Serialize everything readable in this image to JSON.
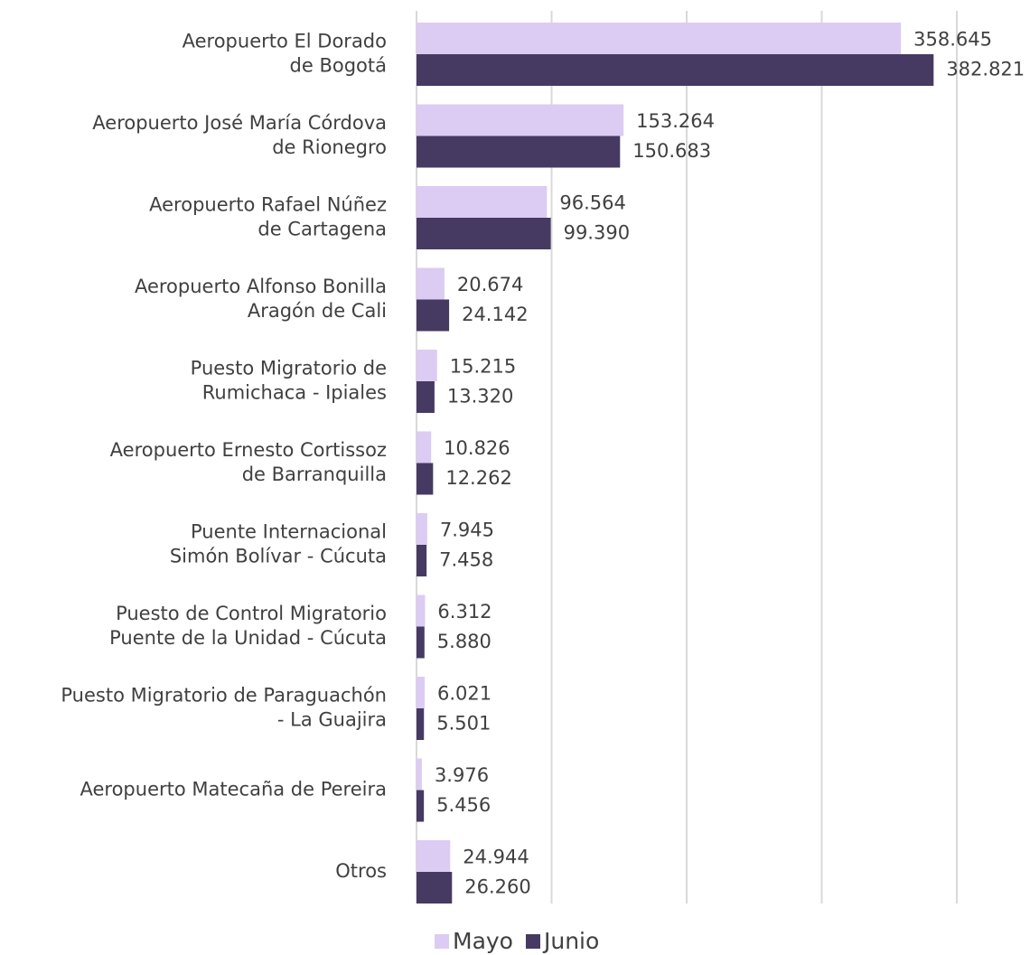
{
  "chart_data": {
    "type": "bar",
    "orientation": "horizontal",
    "categories": [
      "Aeropuerto El Dorado\nde Bogotá",
      "Aeropuerto José María Córdova\nde Rionegro",
      "Aeropuerto Rafael Núñez\nde Cartagena",
      "Aeropuerto Alfonso Bonilla\nAragón de Cali",
      "Puesto Migratorio de\nRumichaca - Ipiales",
      "Aeropuerto Ernesto Cortissoz\nde Barranquilla",
      "Puente Internacional\nSimón Bolívar - Cúcuta",
      "Puesto de Control Migratorio\nPuente de la Unidad - Cúcuta",
      "Puesto Migratorio de Paraguachón\n- La Guajira",
      "Aeropuerto Matecaña de Pereira",
      "Otros"
    ],
    "series": [
      {
        "name": "Mayo",
        "color": "#dccbf2",
        "values": [
          358645,
          153264,
          96564,
          20674,
          15215,
          10826,
          7945,
          6312,
          6021,
          3976,
          24944
        ],
        "value_labels": [
          "358.645",
          "153.264",
          "96.564",
          "20.674",
          "15.215",
          "10.826",
          "7.945",
          "6.312",
          "6.021",
          "3.976",
          "24.944"
        ]
      },
      {
        "name": "Junio",
        "color": "#463a63",
        "values": [
          382821,
          150683,
          99390,
          24142,
          13320,
          12262,
          7458,
          5880,
          5501,
          5456,
          26260
        ],
        "value_labels": [
          "382.821",
          "150.683",
          "99.390",
          "24.142",
          "13.320",
          "12.262",
          "7.458",
          "5.880",
          "5.501",
          "5.456",
          "26.260"
        ]
      }
    ],
    "xlim": [
      0,
      400000
    ],
    "xticks": [
      0,
      100000,
      200000,
      300000,
      400000
    ],
    "grid": true,
    "legend": "bottom"
  }
}
